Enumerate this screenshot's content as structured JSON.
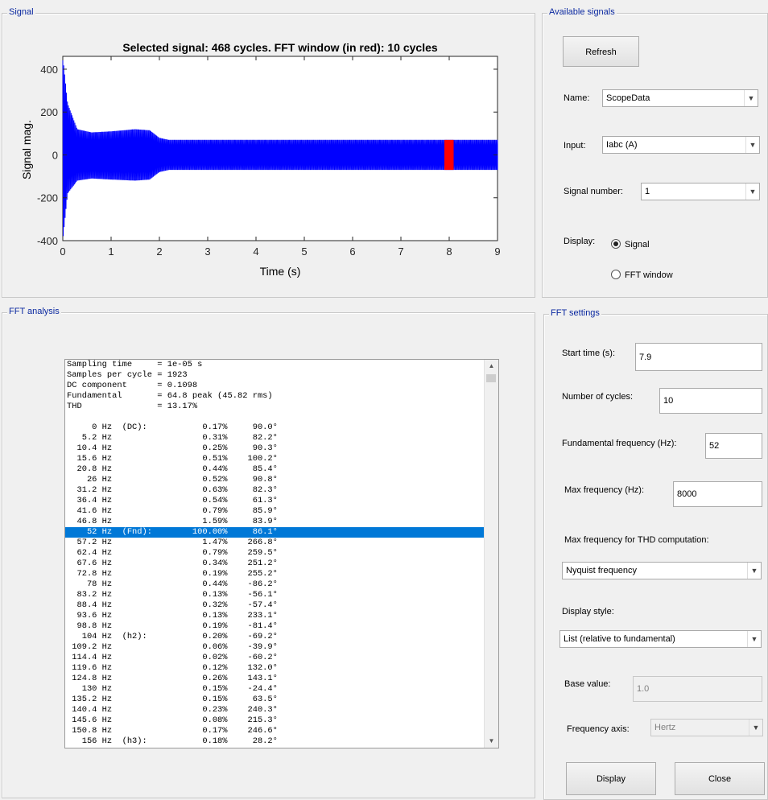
{
  "signal_panel": {
    "title": "Signal",
    "plot_title": "Selected signal: 468 cycles. FFT window (in red): 10 cycles",
    "ylabel": "Signal mag.",
    "xlabel": "Time (s)"
  },
  "chart_data": {
    "type": "line",
    "title": "Selected signal: 468 cycles. FFT window (in red): 10 cycles",
    "xlabel": "Time (s)",
    "ylabel": "Signal mag.",
    "xlim": [
      0,
      9
    ],
    "ylim": [
      -400,
      460
    ],
    "xticks": [
      "0",
      "1",
      "2",
      "3",
      "4",
      "5",
      "6",
      "7",
      "8",
      "9"
    ],
    "yticks": [
      "-400",
      "-200",
      "0",
      "200",
      "400"
    ],
    "xtick_values": [
      0,
      1,
      2,
      3,
      4,
      5,
      6,
      7,
      8,
      9
    ],
    "ytick_values": [
      -400,
      -200,
      0,
      200,
      400
    ],
    "series": [
      {
        "name": "",
        "color": "#0000ff",
        "envelope_time": [
          0,
          0.05,
          0.1,
          0.3,
          0.6,
          1.0,
          1.5,
          1.8,
          2.0,
          2.2,
          9.0
        ],
        "envelope_upper": [
          460,
          350,
          240,
          120,
          105,
          110,
          120,
          115,
          80,
          70,
          70
        ],
        "envelope_lower": [
          -400,
          -290,
          -180,
          -120,
          -110,
          -115,
          -120,
          -115,
          -80,
          -70,
          -70
        ],
        "frequency_hz": 52
      }
    ],
    "fft_window": {
      "start": 7.9,
      "end": 8.092,
      "color": "#ff0000"
    }
  },
  "fft_panel": {
    "title": "FFT analysis",
    "header_lines": [
      "Sampling time     = 1e-05 s",
      "Samples per cycle = 1923",
      "DC component      = 0.1098",
      "Fundamental       = 64.8 peak (45.82 rms)",
      "THD               = 13.17%",
      ""
    ],
    "rows": [
      "     0 Hz  (DC):           0.17%     90.0°",
      "   5.2 Hz                  0.31%     82.2°",
      "  10.4 Hz                  0.25%     90.3°",
      "  15.6 Hz                  0.51%    100.2°",
      "  20.8 Hz                  0.44%     85.4°",
      "    26 Hz                  0.52%     90.8°",
      "  31.2 Hz                  0.63%     82.3°",
      "  36.4 Hz                  0.54%     61.3°",
      "  41.6 Hz                  0.79%     85.9°",
      "  46.8 Hz                  1.59%     83.9°",
      "    52 Hz  (Fnd):        100.00%     86.1°",
      "  57.2 Hz                  1.47%    266.8°",
      "  62.4 Hz                  0.79%    259.5°",
      "  67.6 Hz                  0.34%    251.2°",
      "  72.8 Hz                  0.19%    255.2°",
      "    78 Hz                  0.44%    -86.2°",
      "  83.2 Hz                  0.13%    -56.1°",
      "  88.4 Hz                  0.32%    -57.4°",
      "  93.6 Hz                  0.13%    233.1°",
      "  98.8 Hz                  0.19%    -81.4°",
      "   104 Hz  (h2):           0.20%    -69.2°",
      " 109.2 Hz                  0.06%    -39.9°",
      " 114.4 Hz                  0.02%    -60.2°",
      " 119.6 Hz                  0.12%    132.0°",
      " 124.8 Hz                  0.26%    143.1°",
      "   130 Hz                  0.15%    -24.4°",
      " 135.2 Hz                  0.15%     63.5°",
      " 140.4 Hz                  0.23%    240.3°",
      " 145.6 Hz                  0.08%    215.3°",
      " 150.8 Hz                  0.17%    246.6°",
      "   156 Hz  (h3):           0.18%     28.2°"
    ],
    "selected_index": 10
  },
  "available_signals": {
    "title": "Available signals",
    "refresh_label": "Refresh",
    "name_label": "Name:",
    "name_value": "ScopeData",
    "input_label": "Input:",
    "input_value": "Iabc (A)",
    "signal_number_label": "Signal number:",
    "signal_number_value": "1",
    "display_label": "Display:",
    "display_signal_label": "Signal",
    "display_fft_label": "FFT window",
    "display_selected": "Signal"
  },
  "fft_settings": {
    "title": "FFT settings",
    "start_time_label": "Start time (s):",
    "start_time_value": "7.9",
    "cycles_label": "Number of cycles:",
    "cycles_value": "10",
    "fund_freq_label": "Fundamental frequency (Hz):",
    "fund_freq_value": "52",
    "max_freq_label": "Max frequency (Hz):",
    "max_freq_value": "8000",
    "thd_label": "Max frequency for THD computation:",
    "thd_value": "Nyquist frequency",
    "display_style_label": "Display style:",
    "display_style_value": "List (relative to fundamental)",
    "base_value_label": "Base value:",
    "base_value_value": "1.0",
    "freq_axis_label": "Frequency axis:",
    "freq_axis_value": "Hertz",
    "display_button": "Display",
    "close_button": "Close"
  }
}
